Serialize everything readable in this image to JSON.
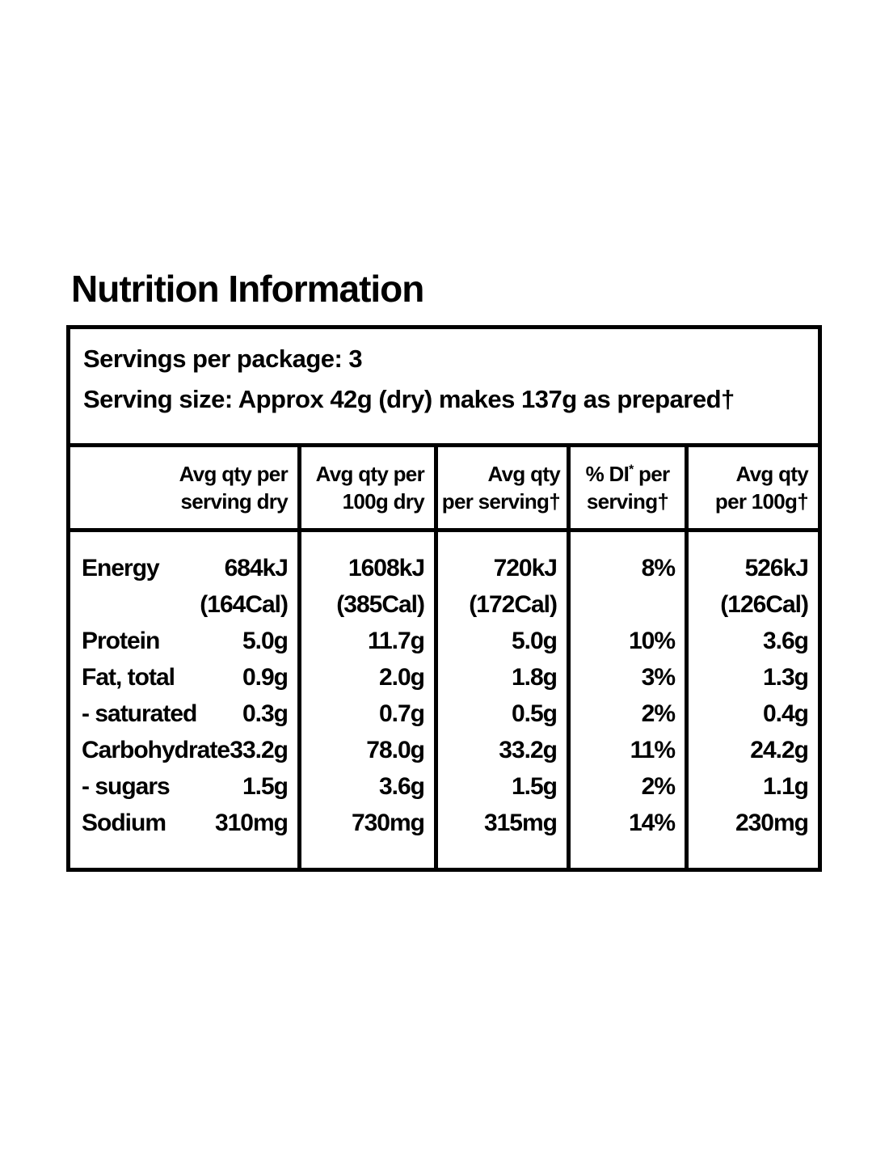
{
  "page": {
    "title": "Nutrition Information",
    "background_color": "#ffffff",
    "text_color": "#000000",
    "border_color": "#000000"
  },
  "panel": {
    "servings_per_package": "Servings per package: 3",
    "serving_size": "Serving size: Approx 42g (dry) makes 137g as prepared†"
  },
  "table": {
    "headers": [
      {
        "line1": "Avg qty per",
        "line2": "serving dry"
      },
      {
        "line1": "Avg qty per",
        "line2": "100g dry"
      },
      {
        "line1": "Avg qty",
        "line2": "per serving†"
      },
      {
        "line1": "% DI",
        "sup": "*",
        "line1b": " per",
        "line2": "serving†"
      },
      {
        "line1": "Avg qty",
        "line2": "per 100g†"
      }
    ],
    "rows": [
      {
        "label": "Energy",
        "serving_dry": "684kJ",
        "per_100g_dry": "1608kJ",
        "per_serving": "720kJ",
        "di": "8%",
        "per_100g": "526kJ"
      },
      {
        "label": "",
        "serving_dry": "(164Cal)",
        "per_100g_dry": "(385Cal)",
        "per_serving": "(172Cal)",
        "di": "",
        "per_100g": "(126Cal)"
      },
      {
        "label": "Protein",
        "serving_dry": "5.0g",
        "per_100g_dry": "11.7g",
        "per_serving": "5.0g",
        "di": "10%",
        "per_100g": "3.6g"
      },
      {
        "label": "Fat, total",
        "serving_dry": "0.9g",
        "per_100g_dry": "2.0g",
        "per_serving": "1.8g",
        "di": "3%",
        "per_100g": "1.3g"
      },
      {
        "label": "- saturated",
        "serving_dry": "0.3g",
        "per_100g_dry": "0.7g",
        "per_serving": "0.5g",
        "di": "2%",
        "per_100g": "0.4g"
      },
      {
        "label": "Carbohydrate",
        "serving_dry": "33.2g",
        "per_100g_dry": "78.0g",
        "per_serving": "33.2g",
        "di": "11%",
        "per_100g": "24.2g"
      },
      {
        "label": "- sugars",
        "serving_dry": "1.5g",
        "per_100g_dry": "3.6g",
        "per_serving": "1.5g",
        "di": "2%",
        "per_100g": "1.1g"
      },
      {
        "label": "Sodium",
        "serving_dry": "310mg",
        "per_100g_dry": "730mg",
        "per_serving": "315mg",
        "di": "14%",
        "per_100g": "230mg"
      }
    ]
  }
}
